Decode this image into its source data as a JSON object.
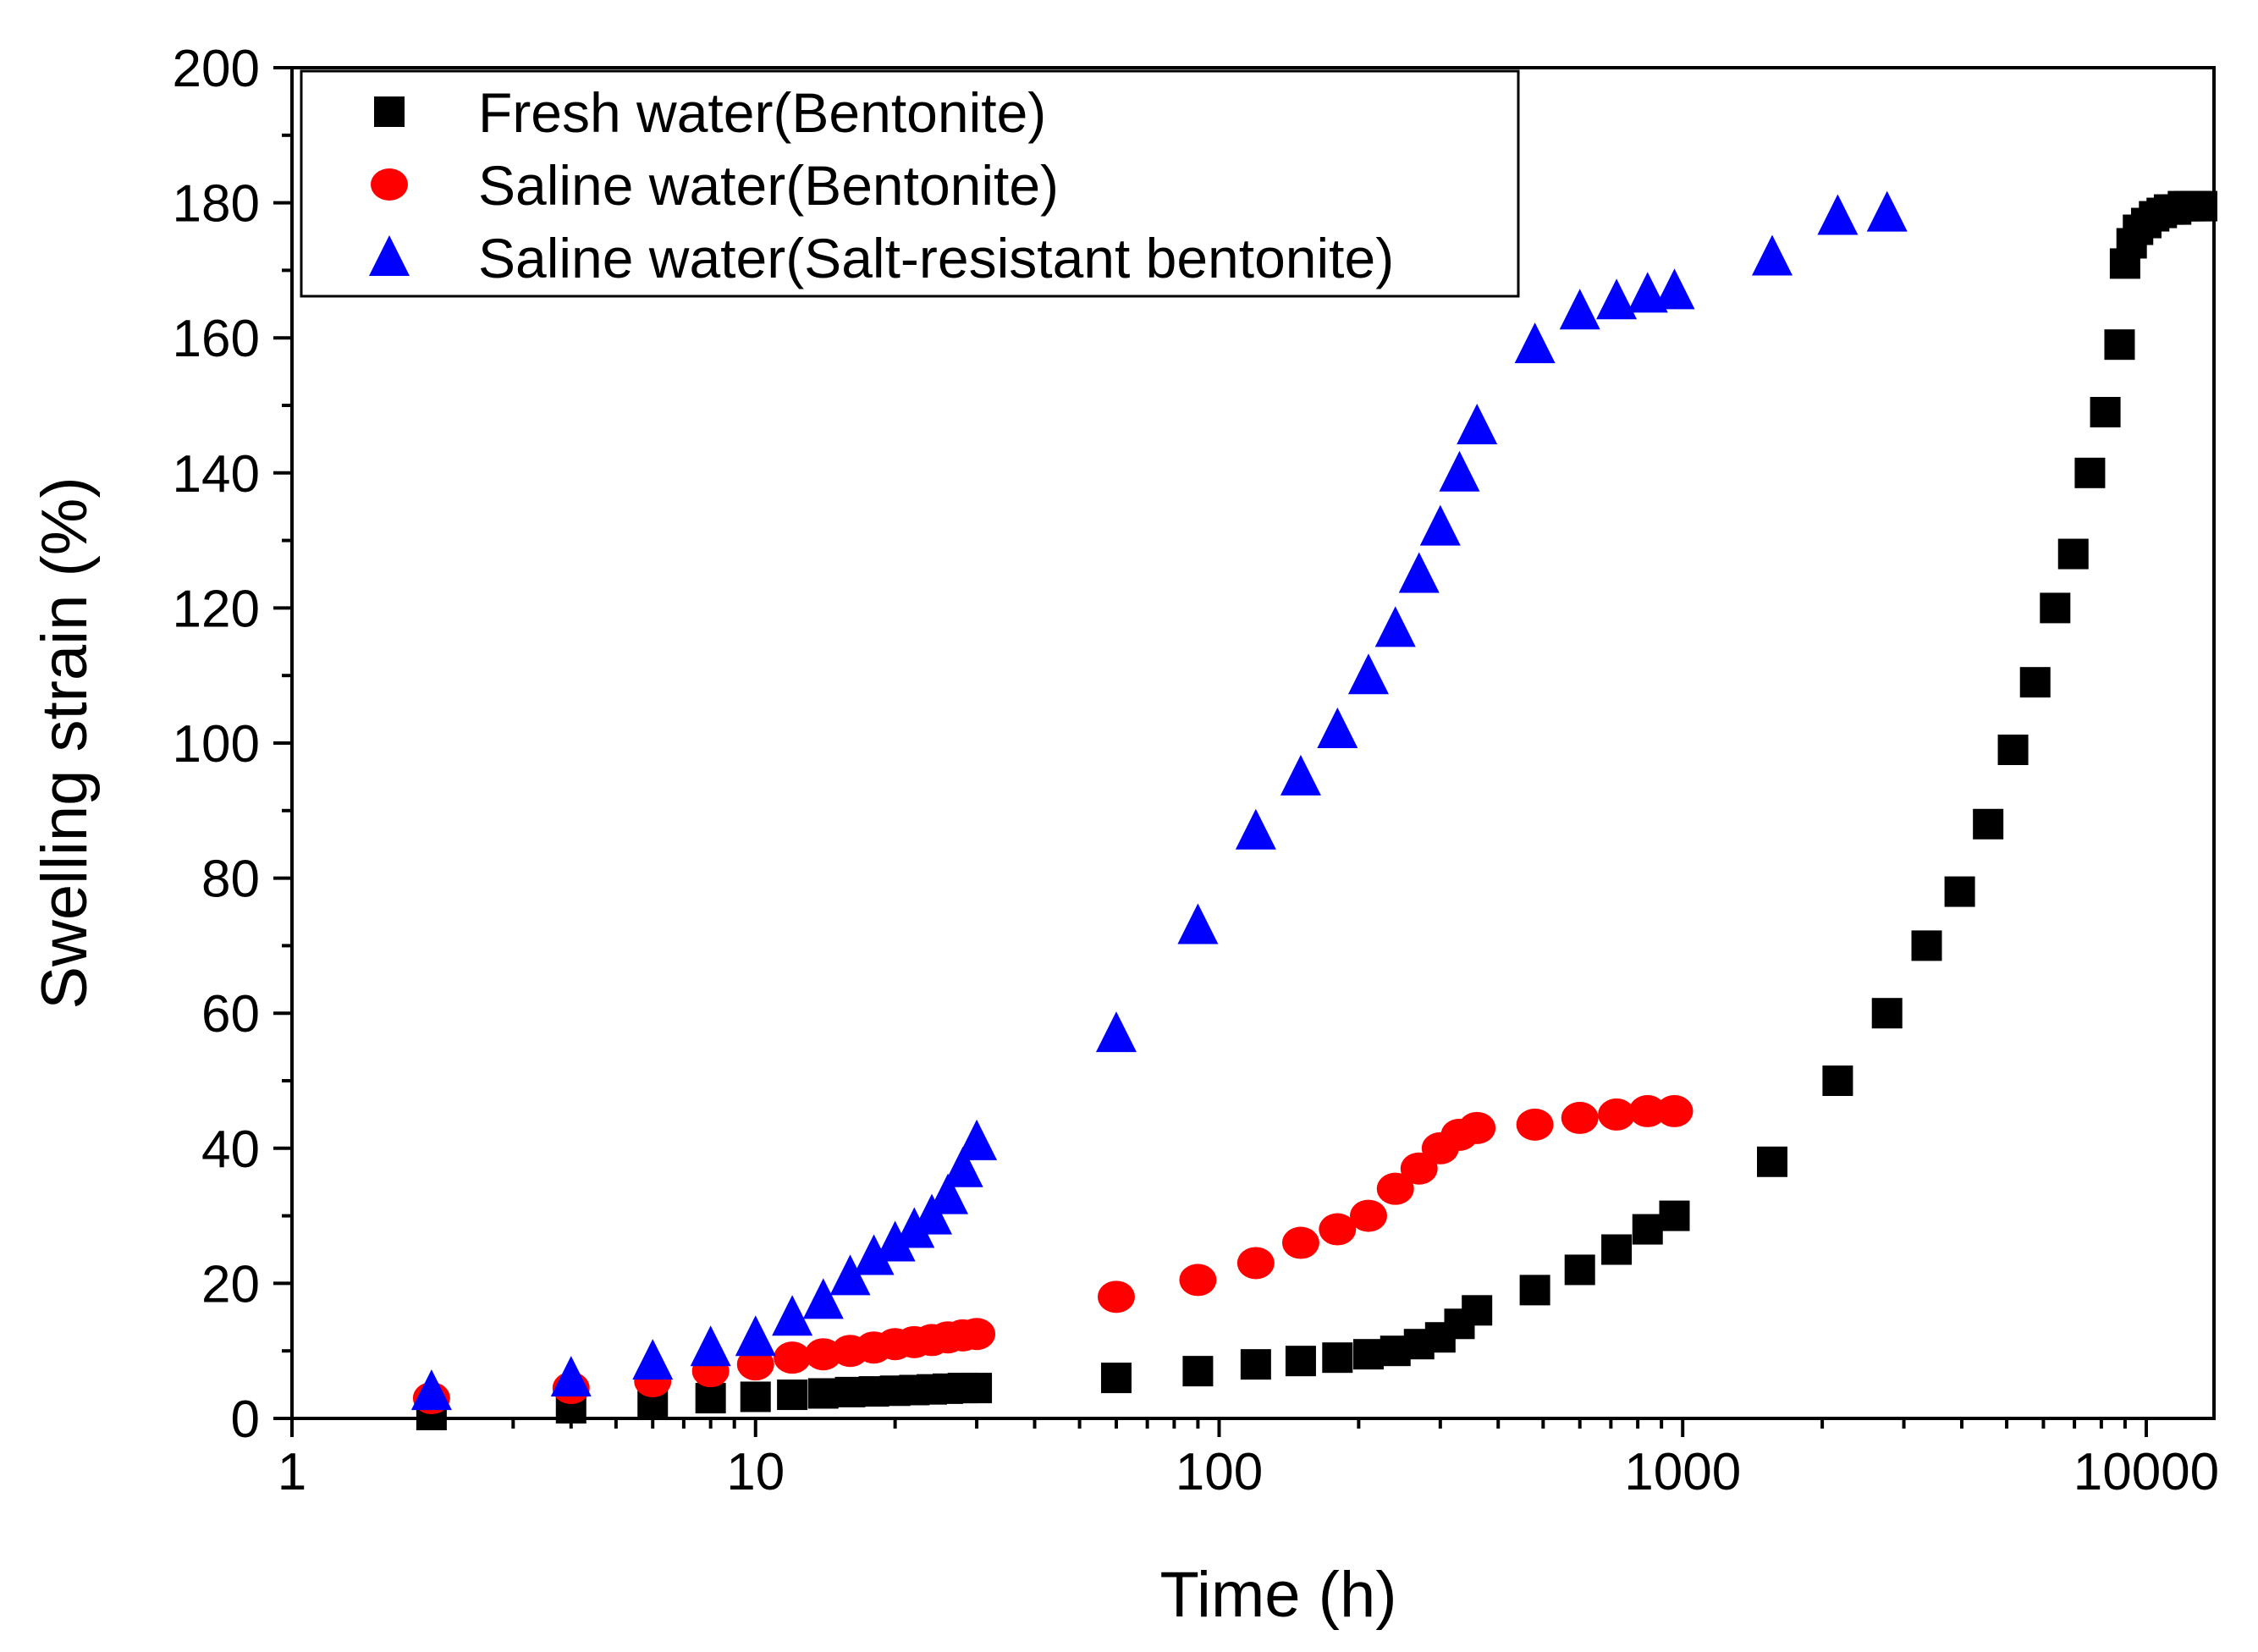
{
  "chart_data": {
    "type": "scatter",
    "title": "",
    "xlabel": "Time (h)",
    "ylabel": "Swelling strain (%)",
    "xscale": "log",
    "xlim": [
      1,
      14000
    ],
    "ylim": [
      0,
      200
    ],
    "xticks": [
      1,
      10,
      100,
      1000,
      10000
    ],
    "xtick_labels": [
      "1",
      "10",
      "100",
      "1000",
      "10000"
    ],
    "yticks": [
      0,
      20,
      40,
      60,
      80,
      100,
      120,
      140,
      160,
      180,
      200
    ],
    "ytick_labels": [
      "0",
      "20",
      "40",
      "60",
      "80",
      "100",
      "120",
      "140",
      "160",
      "180",
      "200"
    ],
    "legend_position": "top-left",
    "series": [
      {
        "name": "Fresh water(Bentonite)",
        "marker": "square",
        "color": "#000000",
        "x": [
          2,
          4,
          6,
          8,
          10,
          12,
          14,
          16,
          18,
          20,
          22,
          24,
          26,
          28,
          30,
          60,
          90,
          120,
          150,
          180,
          210,
          240,
          270,
          300,
          330,
          360,
          480,
          600,
          720,
          840,
          960,
          1560,
          2160,
          2760,
          3360,
          3960,
          4560,
          5160,
          5760,
          6360,
          6960,
          7560,
          8160,
          8760,
          9000,
          9300,
          9600,
          10000,
          10400,
          10800,
          11200,
          11600,
          12000,
          12400,
          12800,
          13200
        ],
        "y": [
          0.5,
          1.5,
          2.5,
          3,
          3.2,
          3.5,
          3.7,
          3.9,
          4,
          4.1,
          4.2,
          4.3,
          4.4,
          4.5,
          4.5,
          6,
          7,
          8,
          8.5,
          9,
          9.5,
          10,
          11,
          12,
          14,
          16,
          19,
          22,
          25,
          28,
          30,
          38,
          50,
          60,
          70,
          78,
          88,
          99,
          109,
          120,
          128,
          140,
          149,
          159,
          171,
          174,
          176,
          177,
          178,
          178.5,
          179,
          179,
          179.5,
          179.5,
          179.5,
          179.5
        ]
      },
      {
        "name": "Saline water(Bentonite)",
        "marker": "circle",
        "color": "#ff0000",
        "x": [
          2,
          4,
          6,
          8,
          10,
          12,
          14,
          16,
          18,
          20,
          22,
          24,
          26,
          28,
          30,
          60,
          90,
          120,
          150,
          180,
          210,
          240,
          270,
          300,
          330,
          360,
          480,
          600,
          720,
          840,
          960
        ],
        "y": [
          3,
          4.5,
          5.5,
          7,
          8,
          9,
          9.5,
          10,
          10.5,
          11,
          11.3,
          11.6,
          12,
          12.3,
          12.5,
          18,
          20.5,
          23,
          26,
          28,
          30,
          34,
          37,
          40,
          42,
          43,
          43.5,
          44.5,
          45,
          45.5,
          45.5
        ]
      },
      {
        "name": "Saline water(Salt-resistant bentonite)",
        "marker": "triangle",
        "color": "#0000ff",
        "x": [
          2,
          4,
          6,
          8,
          10,
          12,
          14,
          16,
          18,
          20,
          22,
          24,
          26,
          28,
          30,
          60,
          90,
          120,
          150,
          180,
          210,
          240,
          270,
          300,
          330,
          360,
          480,
          600,
          720,
          840,
          960,
          1560,
          2160,
          2760
        ],
        "y": [
          4,
          6,
          8.5,
          10.5,
          12,
          15,
          17.5,
          21,
          24,
          26,
          28,
          30,
          33,
          37,
          41,
          57,
          73,
          87,
          95,
          102,
          110,
          117,
          125,
          132,
          140,
          147,
          159,
          164,
          165.5,
          166.5,
          167,
          172,
          178,
          178.5
        ]
      }
    ]
  }
}
